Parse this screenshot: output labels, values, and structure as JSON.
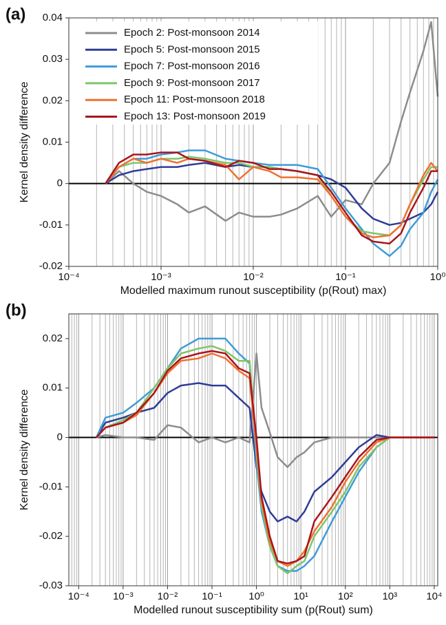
{
  "chart_data": [
    {
      "type": "line",
      "panel_label": "(a)",
      "x_label": "Modelled maximum runout susceptibility (p(Rout) max)",
      "y_label": "Kernel density difference",
      "log_x": true,
      "grid": true,
      "legend": "upper left",
      "xlim": [
        0.0001,
        1
      ],
      "ylim": [
        -0.02,
        0.04
      ],
      "xticks": [
        {
          "value": 0.0001,
          "label": "10⁻⁴"
        },
        {
          "value": 0.001,
          "label": "10⁻³"
        },
        {
          "value": 0.01,
          "label": "10⁻²"
        },
        {
          "value": 0.1,
          "label": "10⁻¹"
        },
        {
          "value": 1,
          "label": "10⁰"
        }
      ],
      "minor_xticks": [
        0.0002,
        0.0003,
        0.0004,
        0.0005,
        0.0006,
        0.0007,
        0.0008,
        0.0009,
        0.002,
        0.003,
        0.004,
        0.005,
        0.006,
        0.007,
        0.008,
        0.009,
        0.02,
        0.03,
        0.04,
        0.05,
        0.06,
        0.07,
        0.08,
        0.09,
        0.2,
        0.3,
        0.4,
        0.5,
        0.6,
        0.7,
        0.8,
        0.9
      ],
      "yticks": [
        0.04,
        0.03,
        0.02,
        0.01,
        0,
        -0.01,
        -0.02
      ],
      "x": [
        0.00025,
        0.00035,
        0.0005,
        0.0007,
        0.001,
        0.0015,
        0.002,
        0.003,
        0.005,
        0.007,
        0.01,
        0.015,
        0.02,
        0.03,
        0.05,
        0.07,
        0.1,
        0.15,
        0.2,
        0.3,
        0.4,
        0.5,
        0.7,
        0.85,
        1
      ],
      "series": [
        {
          "name": "Epoch 2: Post-monsoon 2014",
          "color": "#8c8c8c",
          "values": [
            0,
            0.003,
            0,
            -0.002,
            -0.003,
            -0.005,
            -0.007,
            -0.0055,
            -0.009,
            -0.007,
            -0.008,
            -0.008,
            -0.0075,
            -0.006,
            -0.003,
            -0.008,
            -0.004,
            -0.005,
            0,
            0.005,
            0.015,
            0.022,
            0.032,
            0.039,
            0.021
          ]
        },
        {
          "name": "Epoch 5: Post-monsoon 2015",
          "color": "#2e3c96",
          "values": [
            0,
            0.002,
            0.003,
            0.0035,
            0.004,
            0.004,
            0.0045,
            0.005,
            0.004,
            0.0045,
            0.004,
            0.004,
            0.0035,
            0.003,
            0.002,
            0.001,
            -0.001,
            -0.006,
            -0.0085,
            -0.01,
            -0.0095,
            -0.0085,
            -0.007,
            -0.005,
            -0.002
          ]
        },
        {
          "name": "Epoch 7: Post-monsoon 2016",
          "color": "#3d9bd8",
          "values": [
            0,
            0.004,
            0.006,
            0.006,
            0.007,
            0.0075,
            0.008,
            0.008,
            0.006,
            0.0055,
            0.005,
            0.0045,
            0.0045,
            0.0045,
            0.0035,
            -0.001,
            -0.006,
            -0.011,
            -0.0145,
            -0.0175,
            -0.015,
            -0.011,
            -0.007,
            -0.002,
            0.001
          ]
        },
        {
          "name": "Epoch 9: Post-monsoon 2017",
          "color": "#7cc56a",
          "values": [
            0,
            0.004,
            0.005,
            0.005,
            0.006,
            0.006,
            0.0065,
            0.006,
            0.005,
            0.005,
            0.004,
            0.004,
            0.0035,
            0.003,
            0.002,
            -0.003,
            -0.008,
            -0.0115,
            -0.012,
            -0.0125,
            -0.01,
            -0.005,
            0.001,
            0.004,
            0.004
          ]
        },
        {
          "name": "Epoch 11: Post-monsoon 2018",
          "color": "#f07030",
          "values": [
            0,
            0.004,
            0.006,
            0.005,
            0.006,
            0.005,
            0.006,
            0.0055,
            0.0045,
            0.001,
            0.004,
            0.003,
            0.0015,
            0.0015,
            0.001,
            -0.003,
            -0.008,
            -0.012,
            -0.013,
            -0.0125,
            -0.01,
            -0.005,
            0.002,
            0.005,
            0.003
          ]
        },
        {
          "name": "Epoch 13: Post-monsoon 2019",
          "color": "#a8151c",
          "values": [
            0,
            0.005,
            0.007,
            0.007,
            0.0075,
            0.0075,
            0.006,
            0.0055,
            0.004,
            0.0055,
            0.005,
            0.0035,
            0.0035,
            0.003,
            0.002,
            -0.002,
            -0.007,
            -0.0125,
            -0.014,
            -0.0145,
            -0.012,
            -0.007,
            -0.001,
            0.003,
            0.003
          ]
        }
      ]
    },
    {
      "type": "line",
      "panel_label": "(b)",
      "x_label": "Modelled runout susceptibility sum (p(Rout) sum)",
      "y_label": "Kernel density difference",
      "log_x": true,
      "grid": true,
      "xlim": [
        6e-05,
        12000
      ],
      "ylim": [
        -0.03,
        0.025
      ],
      "xticks": [
        {
          "value": 0.0001,
          "label": "10⁻⁴"
        },
        {
          "value": 0.001,
          "label": "10⁻³"
        },
        {
          "value": 0.01,
          "label": "10⁻²"
        },
        {
          "value": 0.1,
          "label": "10⁻¹"
        },
        {
          "value": 1,
          "label": "10⁰"
        },
        {
          "value": 10,
          "label": "10¹"
        },
        {
          "value": 100,
          "label": "10²"
        },
        {
          "value": 1000,
          "label": "10³"
        },
        {
          "value": 10000,
          "label": "10⁴"
        }
      ],
      "minor_xticks": [
        6e-05,
        7e-05,
        8e-05,
        9e-05,
        0.0002,
        0.0003,
        0.0004,
        0.0005,
        0.0006,
        0.0007,
        0.0008,
        0.0009,
        0.002,
        0.003,
        0.004,
        0.005,
        0.006,
        0.007,
        0.008,
        0.009,
        0.02,
        0.03,
        0.04,
        0.05,
        0.06,
        0.07,
        0.08,
        0.09,
        0.2,
        0.3,
        0.4,
        0.5,
        0.6,
        0.7,
        0.8,
        0.9,
        2,
        3,
        4,
        5,
        6,
        7,
        8,
        9,
        20,
        30,
        40,
        50,
        60,
        70,
        80,
        90,
        200,
        300,
        400,
        500,
        600,
        700,
        800,
        900,
        2000,
        3000,
        4000,
        5000,
        6000,
        7000,
        8000,
        9000
      ],
      "yticks": [
        0.02,
        0.01,
        0,
        -0.01,
        -0.02,
        -0.03
      ],
      "x": [
        0.00025,
        0.0004,
        0.001,
        0.002,
        0.005,
        0.01,
        0.02,
        0.05,
        0.1,
        0.2,
        0.4,
        0.7,
        1,
        1.3,
        2,
        3,
        5,
        8,
        12,
        20,
        50,
        100,
        200,
        500,
        1000,
        3000,
        10000
      ],
      "series": [
        {
          "color": "#8c8c8c",
          "values": [
            0,
            0.0005,
            0,
            0,
            -0.0005,
            0.0025,
            0.002,
            -0.001,
            0,
            -0.001,
            0,
            -0.001,
            0.017,
            0.006,
            0.001,
            -0.004,
            -0.006,
            -0.004,
            -0.003,
            -0.001,
            0,
            0,
            0,
            0,
            0,
            0,
            0
          ]
        },
        {
          "color": "#2e3c96",
          "values": [
            0,
            0.003,
            0.004,
            0.005,
            0.006,
            0.009,
            0.0105,
            0.011,
            0.0105,
            0.0105,
            0.008,
            0.006,
            -0.006,
            -0.011,
            -0.015,
            -0.017,
            -0.016,
            -0.017,
            -0.015,
            -0.011,
            -0.008,
            -0.005,
            -0.002,
            0.0005,
            0,
            0,
            0
          ]
        },
        {
          "color": "#3d9bd8",
          "values": [
            0,
            0.004,
            0.005,
            0.007,
            0.01,
            0.014,
            0.018,
            0.02,
            0.02,
            0.02,
            0.017,
            0.015,
            -0.005,
            -0.015,
            -0.022,
            -0.026,
            -0.027,
            -0.027,
            -0.026,
            -0.024,
            -0.017,
            -0.012,
            -0.007,
            -0.002,
            0,
            0,
            0
          ]
        },
        {
          "color": "#7cc56a",
          "values": [
            0,
            0.002,
            0.0035,
            0.005,
            0.01,
            0.014,
            0.017,
            0.018,
            0.0185,
            0.0175,
            0.0155,
            0.0155,
            -0.003,
            -0.014,
            -0.022,
            -0.026,
            -0.0275,
            -0.026,
            -0.025,
            -0.02,
            -0.015,
            -0.011,
            -0.006,
            -0.002,
            0,
            0,
            0
          ]
        },
        {
          "color": "#f07030",
          "values": [
            0,
            0.002,
            0.003,
            0.0045,
            0.009,
            0.013,
            0.0155,
            0.016,
            0.017,
            0.016,
            0.0135,
            0.012,
            -0.002,
            -0.013,
            -0.021,
            -0.025,
            -0.026,
            -0.025,
            -0.023,
            -0.019,
            -0.014,
            -0.009,
            -0.005,
            -0.001,
            0,
            0,
            0
          ]
        },
        {
          "color": "#a8151c",
          "values": [
            0,
            0.002,
            0.003,
            0.005,
            0.009,
            0.0135,
            0.016,
            0.017,
            0.0175,
            0.017,
            0.014,
            0.013,
            0,
            -0.012,
            -0.02,
            -0.025,
            -0.0255,
            -0.025,
            -0.024,
            -0.017,
            -0.012,
            -0.008,
            -0.004,
            -0.0005,
            0,
            0,
            0
          ]
        }
      ]
    }
  ]
}
